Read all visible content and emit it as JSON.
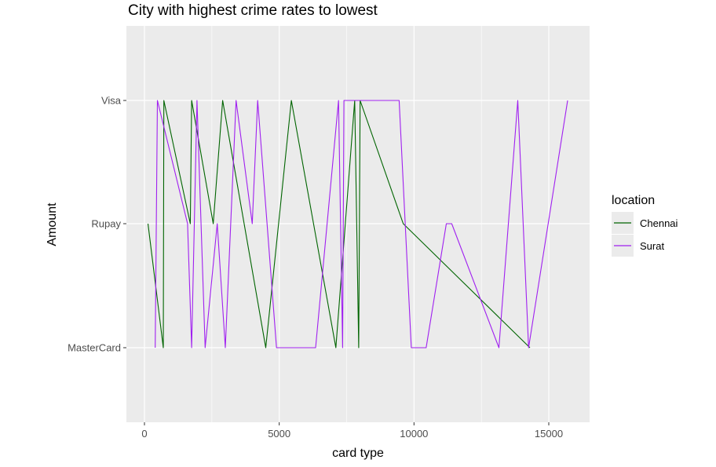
{
  "chart_data": {
    "type": "line",
    "title": "City with highest crime rates to lowest",
    "xlabel": "card type",
    "ylabel": "Amount",
    "categories": [
      "MasterCard",
      "Rupay",
      "Visa"
    ],
    "xlim": [
      -500,
      16500
    ],
    "xticks": [
      0,
      5000,
      10000,
      15000
    ],
    "x_tick_labels": [
      "0",
      "5000",
      "10000",
      "15000"
    ],
    "grid": true,
    "legend": {
      "title": "location",
      "position": "right",
      "entries": [
        {
          "label": "Chennai",
          "color": "#006400"
        },
        {
          "label": "Surat",
          "color": "#A020F0"
        }
      ]
    },
    "series": [
      {
        "name": "Chennai",
        "color": "#006400",
        "points": [
          [
            130,
            "Rupay"
          ],
          [
            700,
            "MasterCard"
          ],
          [
            720,
            "Visa"
          ],
          [
            1700,
            "Rupay"
          ],
          [
            1750,
            "Visa"
          ],
          [
            2550,
            "Rupay"
          ],
          [
            2900,
            "Visa"
          ],
          [
            4500,
            "MasterCard"
          ],
          [
            5450,
            "Visa"
          ],
          [
            7100,
            "MasterCard"
          ],
          [
            7800,
            "Visa"
          ],
          [
            7950,
            "MasterCard"
          ],
          [
            8000,
            "Visa"
          ],
          [
            9600,
            "Rupay"
          ],
          [
            14300,
            "MasterCard"
          ]
        ]
      },
      {
        "name": "Surat",
        "color": "#A020F0",
        "points": [
          [
            400,
            "MasterCard"
          ],
          [
            480,
            "Visa"
          ],
          [
            1600,
            "Rupay"
          ],
          [
            1750,
            "MasterCard"
          ],
          [
            1950,
            "Visa"
          ],
          [
            2250,
            "MasterCard"
          ],
          [
            2700,
            "Rupay"
          ],
          [
            3000,
            "MasterCard"
          ],
          [
            3400,
            "Visa"
          ],
          [
            4000,
            "Rupay"
          ],
          [
            4200,
            "Visa"
          ],
          [
            4900,
            "MasterCard"
          ],
          [
            6350,
            "MasterCard"
          ],
          [
            7200,
            "Visa"
          ],
          [
            7350,
            "MasterCard"
          ],
          [
            7400,
            "Visa"
          ],
          [
            9450,
            "Visa"
          ],
          [
            9900,
            "MasterCard"
          ],
          [
            10450,
            "MasterCard"
          ],
          [
            11200,
            "Rupay"
          ],
          [
            11400,
            "Rupay"
          ],
          [
            13150,
            "MasterCard"
          ],
          [
            13850,
            "Visa"
          ],
          [
            14250,
            "MasterCard"
          ],
          [
            15700,
            "Visa"
          ]
        ]
      }
    ]
  }
}
